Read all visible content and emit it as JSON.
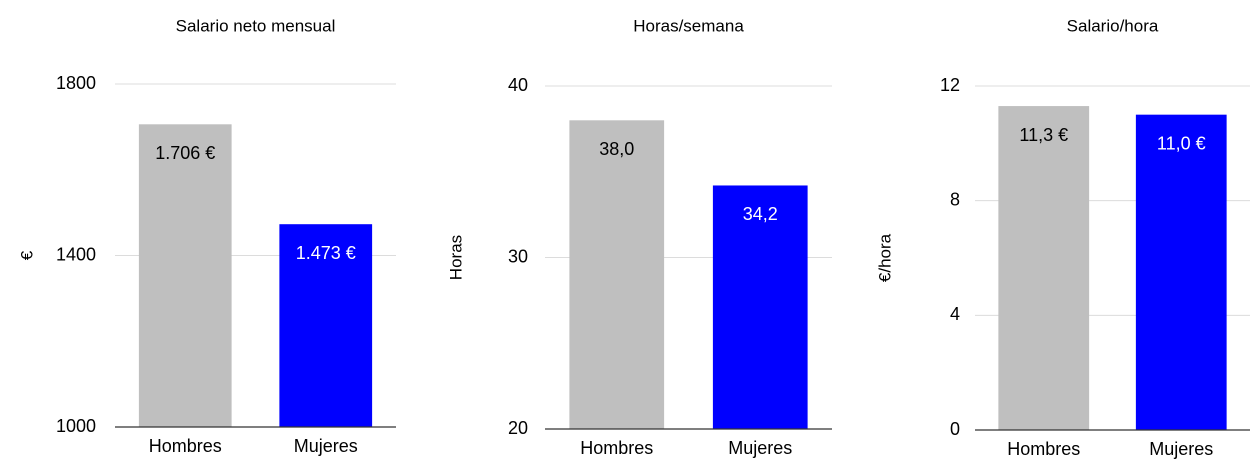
{
  "chart_data": [
    {
      "type": "bar",
      "title": "Salario neto mensual",
      "y_label": "€",
      "categories": [
        "Hombres",
        "Mujeres"
      ],
      "values": [
        1706,
        1473
      ],
      "value_labels": [
        "1.706 €",
        "1.473 €"
      ],
      "colors": [
        "#bfbfbf",
        "#0000ff"
      ],
      "ylim": [
        1000,
        1800
      ],
      "yticks": [
        1000,
        1400,
        1800
      ],
      "grid": true
    },
    {
      "type": "bar",
      "title": "Horas/semana",
      "y_label": "Horas",
      "categories": [
        "Hombres",
        "Mujeres"
      ],
      "values": [
        38.0,
        34.2
      ],
      "value_labels": [
        "38,0",
        "34,2"
      ],
      "colors": [
        "#bfbfbf",
        "#0000ff"
      ],
      "ylim": [
        20,
        40
      ],
      "yticks": [
        20,
        30,
        40
      ],
      "grid": true
    },
    {
      "type": "bar",
      "title": "Salario/hora",
      "y_label": "€/hora",
      "categories": [
        "Hombres",
        "Mujeres"
      ],
      "values": [
        11.3,
        11.0
      ],
      "value_labels": [
        "11,3 €",
        "11,0 €"
      ],
      "colors": [
        "#bfbfbf",
        "#0000ff"
      ],
      "ylim": [
        0,
        12
      ],
      "yticks": [
        0,
        4,
        8,
        12
      ],
      "grid": true
    }
  ]
}
